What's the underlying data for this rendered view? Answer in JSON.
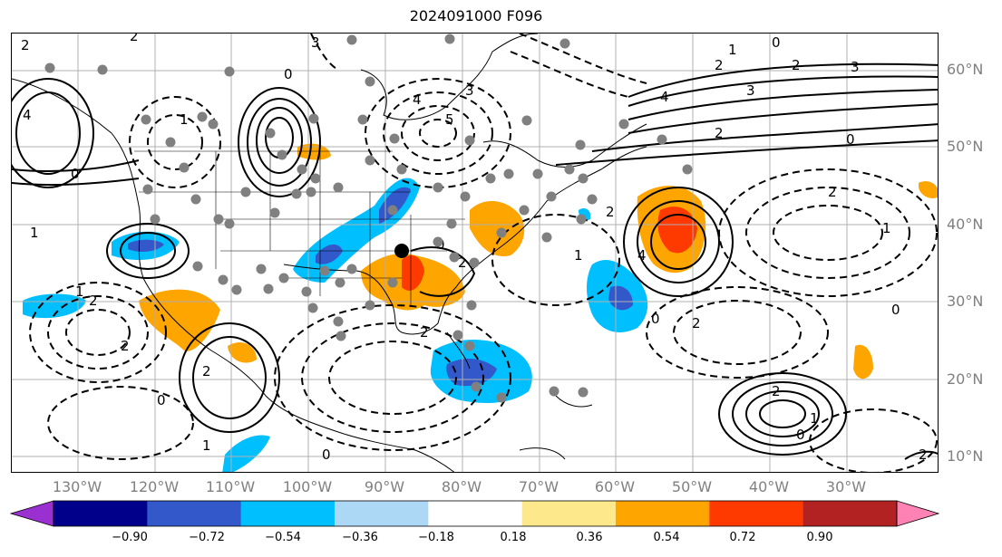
{
  "title": "2024091000 F096",
  "lat_labels": [
    "60°N",
    "50°N",
    "40°N",
    "30°N",
    "20°N",
    "10°N"
  ],
  "lon_labels": [
    "130°W",
    "120°W",
    "110°W",
    "100°W",
    "90°W",
    "80°W",
    "70°W",
    "60°W",
    "50°W",
    "40°W",
    "30°W"
  ],
  "colorbar": {
    "ticks": [
      "−0.90",
      "−0.72",
      "−0.54",
      "−0.36",
      "−0.18",
      "0.18",
      "0.36",
      "0.54",
      "0.72",
      "0.90"
    ],
    "colors": [
      "#9b30d0",
      "#00008b",
      "#3358c9",
      "#00bfff",
      "#add8f5",
      "#ffffff",
      "#fde88c",
      "#ffa500",
      "#ff3a00",
      "#b22222",
      "#ff82b4"
    ]
  },
  "contour_labels": [
    "2",
    "3",
    "4",
    "5",
    "0",
    "1",
    "2",
    "3",
    "4",
    "0",
    "2",
    "2",
    "1",
    "0",
    "2",
    "2",
    "2",
    "1",
    "0",
    "1",
    "0",
    "2",
    "2",
    "1",
    "0",
    "2",
    "3",
    "4",
    "3",
    "2",
    "2",
    "1",
    "0",
    "2",
    "1",
    "0",
    "2",
    "1",
    "0",
    "2",
    "4",
    "0"
  ],
  "marked_location": "black-dot"
}
